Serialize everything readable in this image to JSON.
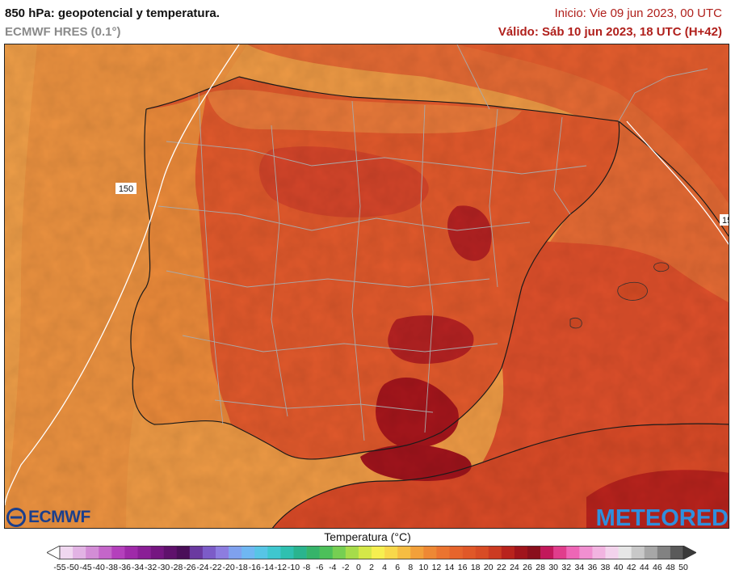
{
  "header": {
    "title": "850 hPa: geopotencial y temperatura.",
    "model": "ECMWF HRES (0.1°)",
    "init": "Inicio: Vie 09 jun 2023, 00 UTC",
    "valid": "Válido: Sáb 10 jun 2023, 18 UTC (H+42)"
  },
  "map": {
    "contour_labels": [
      "150",
      "15"
    ]
  },
  "logos": {
    "left": "ECMWF",
    "right": "METEORED"
  },
  "colorbar": {
    "title": "Temperatura (°C)",
    "ticks": [
      "-55",
      "-50",
      "-45",
      "-40",
      "-38",
      "-36",
      "-34",
      "-32",
      "-30",
      "-28",
      "-26",
      "-24",
      "-22",
      "-20",
      "-18",
      "-16",
      "-14",
      "-12",
      "-10",
      "-8",
      "-6",
      "-4",
      "-2",
      "0",
      "2",
      "4",
      "6",
      "8",
      "10",
      "12",
      "14",
      "16",
      "18",
      "20",
      "22",
      "24",
      "26",
      "28",
      "30",
      "32",
      "34",
      "36",
      "38",
      "40",
      "42",
      "44",
      "46",
      "48",
      "50"
    ],
    "colors": [
      "#ffffff",
      "#f0d7f0",
      "#e2b3e4",
      "#d38dd6",
      "#c466c9",
      "#b440bc",
      "#9f2aa9",
      "#8a1f96",
      "#751681",
      "#5f116c",
      "#4a0f59",
      "#6a3aa0",
      "#7c5cc8",
      "#8d7de0",
      "#7fa1ee",
      "#6fb7f2",
      "#57c5e6",
      "#3fc7cf",
      "#2fc0b0",
      "#2ab48e",
      "#36b46a",
      "#4cc05a",
      "#76cf52",
      "#a6dc4a",
      "#d4e848",
      "#f6ef50",
      "#f8d84a",
      "#f6bd42",
      "#f2a03a",
      "#ee8834",
      "#eb7430",
      "#e6642c",
      "#e05828",
      "#d84c25",
      "#cc3b22",
      "#b8231d",
      "#a0141c",
      "#8a0f1c",
      "#c2185b",
      "#e03d8c",
      "#ee66b6",
      "#f08fd0",
      "#f2b4e1",
      "#f3d3ec",
      "#e6e6e6",
      "#c8c8c8",
      "#a7a7a7",
      "#828282",
      "#5a5a5a",
      "#3a3a3a"
    ]
  }
}
